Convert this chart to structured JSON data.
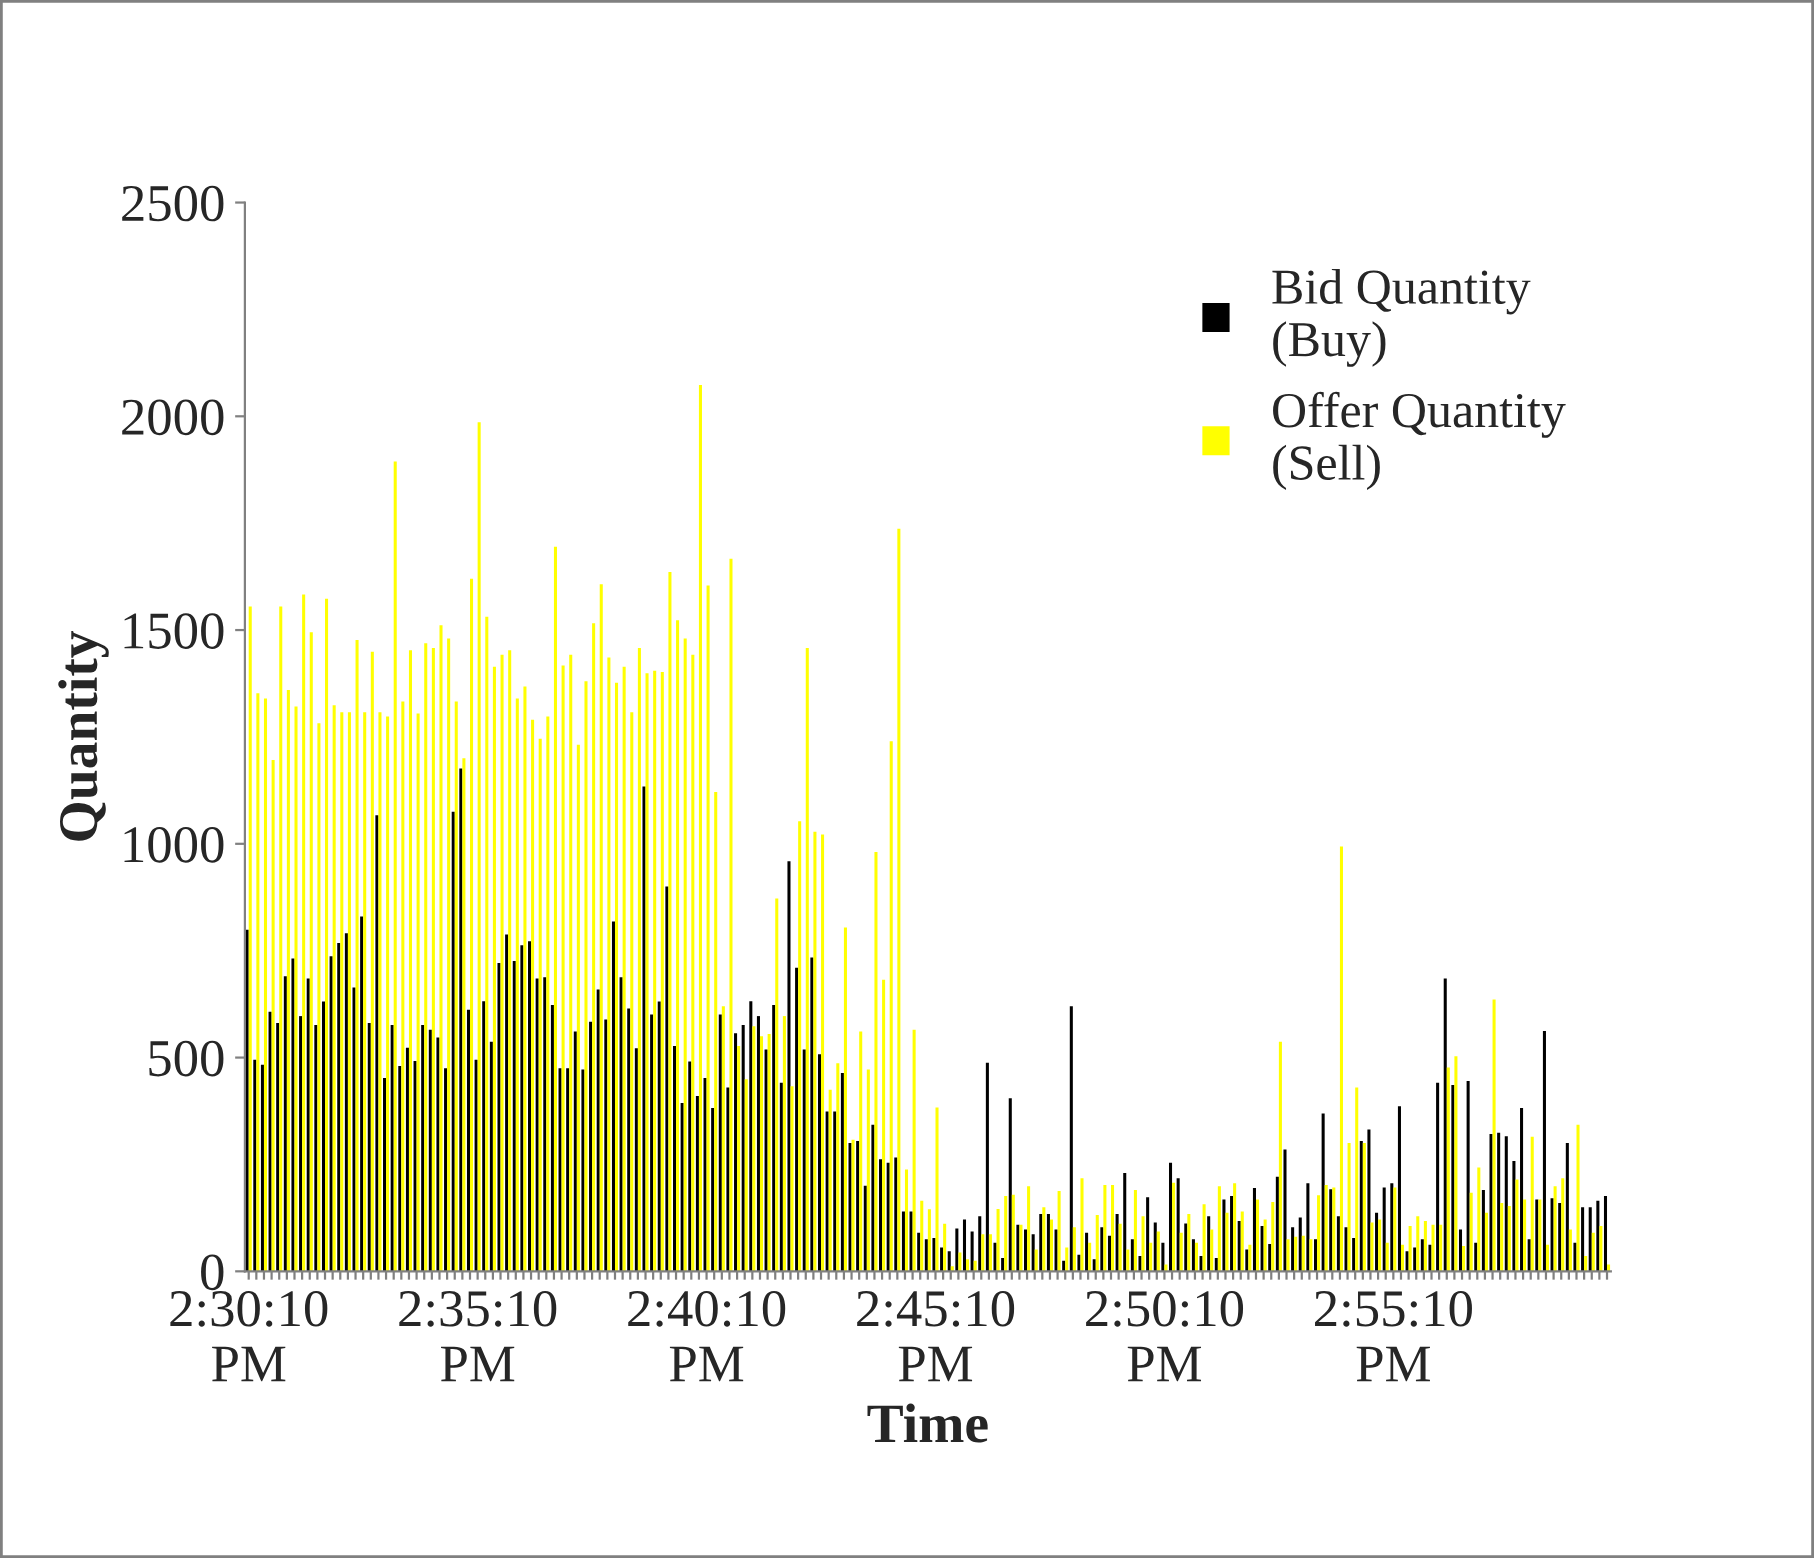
{
  "chart_data": {
    "type": "bar",
    "xlabel": "Time",
    "ylabel": "Quantity",
    "categories": [
      "2:30:10 PM",
      null,
      null,
      null,
      null,
      null,
      null,
      null,
      null,
      null,
      null,
      null,
      null,
      null,
      null,
      null,
      null,
      null,
      null,
      null,
      null,
      null,
      null,
      null,
      null,
      null,
      null,
      null,
      null,
      null,
      "2:35:10 PM",
      null,
      null,
      null,
      null,
      null,
      null,
      null,
      null,
      null,
      null,
      null,
      null,
      null,
      null,
      null,
      null,
      null,
      null,
      null,
      null,
      null,
      null,
      null,
      null,
      null,
      null,
      null,
      null,
      null,
      "2:40:10 PM",
      null,
      null,
      null,
      null,
      null,
      null,
      null,
      null,
      null,
      null,
      null,
      null,
      null,
      null,
      null,
      null,
      null,
      null,
      null,
      null,
      null,
      null,
      null,
      null,
      null,
      null,
      null,
      null,
      null,
      "2:45:10 PM",
      null,
      null,
      null,
      null,
      null,
      null,
      null,
      null,
      null,
      null,
      null,
      null,
      null,
      null,
      null,
      null,
      null,
      null,
      null,
      null,
      null,
      null,
      null,
      null,
      null,
      null,
      null,
      null,
      null,
      "2:50:10 PM",
      null,
      null,
      null,
      null,
      null,
      null,
      null,
      null,
      null,
      null,
      null,
      null,
      null,
      null,
      null,
      null,
      null,
      null,
      null,
      null,
      null,
      null,
      null,
      null,
      null,
      null,
      null,
      null,
      null,
      "2:55:10 PM",
      null,
      null,
      null,
      null,
      null,
      null,
      null,
      null,
      null,
      null,
      null,
      null,
      null,
      null,
      null,
      null,
      null,
      null,
      null,
      null,
      null,
      null,
      null,
      null,
      null,
      null,
      null,
      null
    ],
    "series": [
      {
        "name": "Bid Quantity\n(Buy)",
        "color": "#000000",
        "values": [
          799,
          495,
          483,
          607,
          581,
          690,
          732,
          597,
          685,
          576,
          631,
          737,
          768,
          791,
          664,
          830,
          581,
          1067,
          452,
          576,
          480,
          523,
          492,
          576,
          565,
          547,
          475,
          1075,
          1176,
          612,
          495,
          632,
          537,
          721,
          788,
          726,
          763,
          772,
          685,
          688,
          623,
          475,
          475,
          561,
          472,
          584,
          659,
          589,
          818,
          688,
          615,
          522,
          1134,
          601,
          631,
          900,
          527,
          394,
          491,
          410,
          452,
          382,
          601,
          430,
          557,
          576,
          632,
          597,
          519,
          623,
          441,
          959,
          710,
          519,
          734,
          508,
          374,
          374,
          464,
          300,
          305,
          200,
          343,
          262,
          254,
          266,
          140,
          140,
          90,
          75,
          78,
          56,
          47,
          100,
          121,
          93,
          129,
          488,
          67,
          31,
          405,
          109,
          98,
          87,
          134,
          134,
          98,
          25,
          620,
          39,
          90,
          28,
          103,
          83,
          134,
          230,
          75,
          36,
          173,
          114,
          67,
          254,
          218,
          112,
          75,
          36,
          129,
          31,
          168,
          176,
          118,
          51,
          195,
          106,
          64,
          221,
          285,
          103,
          126,
          206,
          75,
          369,
          192,
          129,
          103,
          78,
          305,
          332,
          137,
          196,
          206,
          386,
          47,
          56,
          75,
          62,
          441,
          685,
          436,
          98,
          445,
          67,
          190,
          321,
          324,
          316,
          258,
          382,
          75,
          168,
          562,
          171,
          160,
          300,
          67,
          150,
          150,
          165,
          176
        ]
      },
      {
        "name": "Offer Quantity\n(Sell)",
        "color": "#ffff00",
        "values": [
          1555,
          1352,
          1340,
          1196,
          1555,
          1360,
          1321,
          1583,
          1495,
          1282,
          1573,
          1324,
          1308,
          1308,
          1477,
          1308,
          1449,
          1308,
          1298,
          1894,
          1333,
          1453,
          1305,
          1469,
          1458,
          1511,
          1480,
          1333,
          1200,
          1620,
          1986,
          1531,
          1414,
          1442,
          1453,
          1340,
          1368,
          1290,
          1246,
          1298,
          1695,
          1417,
          1442,
          1232,
          1380,
          1516,
          1607,
          1436,
          1377,
          1414,
          1308,
          1458,
          1399,
          1405,
          1402,
          1636,
          1523,
          1480,
          1442,
          2073,
          1604,
          1121,
          620,
          1667,
          527,
          449,
          573,
          550,
          555,
          872,
          597,
          433,
          1053,
          1458,
          1028,
          1022,
          425,
          487,
          804,
          308,
          561,
          472,
          981,
          682,
          1240,
          1737,
          238,
          565,
          165,
          145,
          383,
          111,
          12,
          44,
          28,
          25,
          87,
          87,
          146,
          176,
          179,
          109,
          199,
          51,
          150,
          121,
          188,
          56,
          103,
          218,
          67,
          132,
          202,
          202,
          111,
          51,
          190,
          129,
          67,
          93,
          16,
          207,
          90,
          134,
          67,
          157,
          98,
          199,
          137,
          206,
          140,
          62,
          168,
          121,
          162,
          537,
          75,
          81,
          83,
          75,
          178,
          202,
          196,
          994,
          300,
          430,
          300,
          114,
          121,
          67,
          196,
          62,
          106,
          129,
          118,
          109,
          109,
          477,
          503,
          59,
          184,
          243,
          137,
          636,
          160,
          153,
          215,
          168,
          315,
          168,
          62,
          199,
          218,
          98,
          343,
          36,
          90,
          106,
          16
        ]
      }
    ],
    "ylim": [
      0,
      2500
    ],
    "yticks": [
      0,
      500,
      1000,
      1500,
      2000,
      2500
    ],
    "grid": false,
    "legend": "top right"
  }
}
